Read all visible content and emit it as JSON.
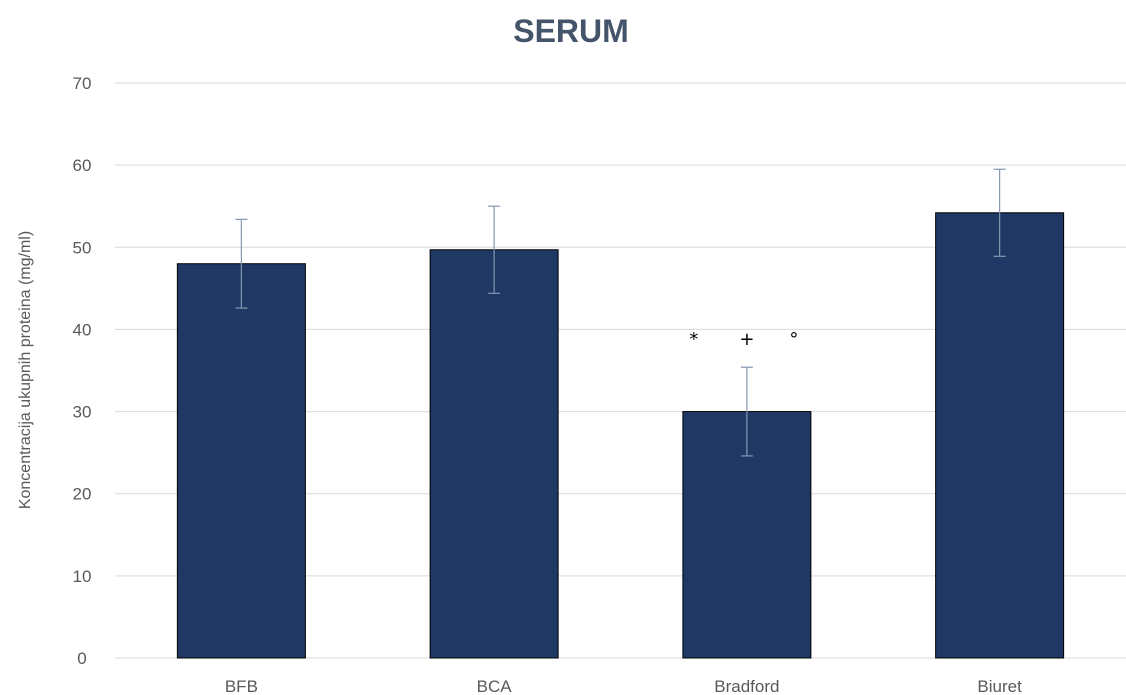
{
  "chart_data": {
    "type": "bar",
    "title": "SERUM",
    "xlabel": "",
    "ylabel": "Koncentracija ukupnih proteina (mg/ml)",
    "ylim": [
      0,
      70
    ],
    "yticks": [
      0,
      10,
      20,
      30,
      40,
      50,
      60,
      70
    ],
    "grid": true,
    "categories": [
      "BFB",
      "BCA",
      "Bradford",
      "Biuret"
    ],
    "values": [
      48.0,
      49.7,
      30.0,
      54.2
    ],
    "errors": [
      5.4,
      5.3,
      5.4,
      5.3
    ],
    "bar_color": "#203864",
    "annotations": [
      {
        "category": "Bradford",
        "symbols": [
          "*",
          "+",
          "°"
        ]
      }
    ]
  }
}
